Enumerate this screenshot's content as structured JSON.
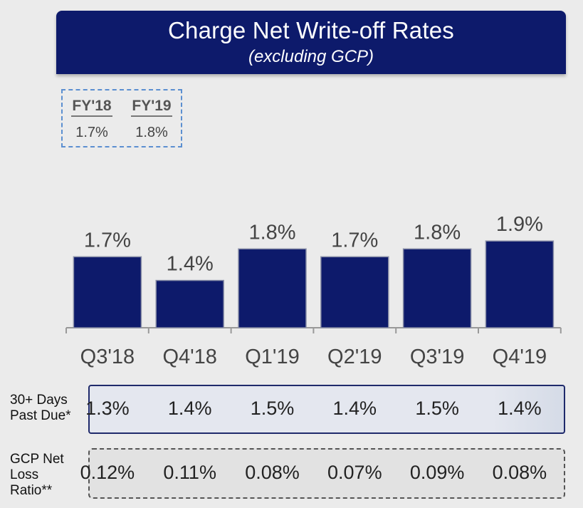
{
  "header": {
    "title": "Charge Net Write-off Rates",
    "subtitle": "(excluding GCP)"
  },
  "fy": {
    "items": [
      {
        "label": "FY'18",
        "value": "1.7%"
      },
      {
        "label": "FY'19",
        "value": "1.8%"
      }
    ]
  },
  "chart_data": {
    "type": "bar",
    "categories": [
      "Q3'18",
      "Q4'18",
      "Q1'19",
      "Q2'19",
      "Q3'19",
      "Q4'19"
    ],
    "values": [
      1.7,
      1.4,
      1.8,
      1.7,
      1.8,
      1.9
    ],
    "value_labels": [
      "1.7%",
      "1.4%",
      "1.8%",
      "1.7%",
      "1.8%",
      "1.9%"
    ],
    "title": "",
    "xlabel": "",
    "ylabel": "",
    "bar_color": "#0d1a6b",
    "grid": false,
    "legend": "none"
  },
  "rows": {
    "past_due": {
      "label_line1": "30+ Days",
      "label_line2": "Past Due*",
      "values": [
        "1.3%",
        "1.4%",
        "1.5%",
        "1.4%",
        "1.5%",
        "1.4%"
      ]
    },
    "gcp": {
      "label_line1": "GCP Net",
      "label_line2": "Loss",
      "label_line3": "Ratio**",
      "values": [
        "0.12%",
        "0.11%",
        "0.08%",
        "0.07%",
        "0.09%",
        "0.08%"
      ]
    }
  }
}
